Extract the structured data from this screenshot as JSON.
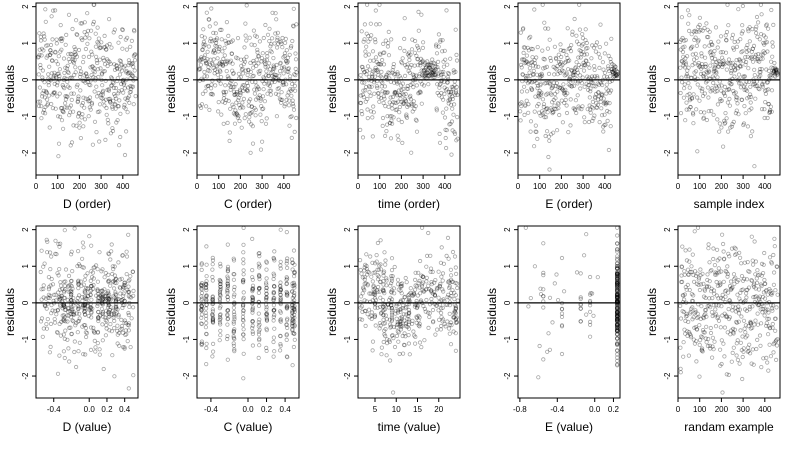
{
  "chart_data": [
    {
      "type": "scatter",
      "xlabel": "D (order)",
      "ylabel": "residuals",
      "xticks": [
        "0",
        "100",
        "200",
        "300",
        "400"
      ],
      "xlim": [
        0,
        470
      ],
      "yticks": [
        "-2",
        "-1",
        "0",
        "1",
        "2"
      ],
      "ylim": [
        -2.6,
        2.1
      ],
      "reference_line": 0,
      "pattern": "order_a",
      "seed": 11
    },
    {
      "type": "scatter",
      "xlabel": "C (order)",
      "ylabel": "residuals",
      "xticks": [
        "0",
        "100",
        "200",
        "300",
        "400"
      ],
      "xlim": [
        0,
        470
      ],
      "yticks": [
        "-2",
        "-1",
        "0",
        "1",
        "2"
      ],
      "ylim": [
        -2.6,
        2.1
      ],
      "reference_line": 0,
      "pattern": "order_b",
      "seed": 23
    },
    {
      "type": "scatter",
      "xlabel": "time (order)",
      "ylabel": "residuals",
      "xticks": [
        "0",
        "100",
        "200",
        "300",
        "400"
      ],
      "xlim": [
        0,
        470
      ],
      "yticks": [
        "-2",
        "-1",
        "0",
        "1",
        "2"
      ],
      "ylim": [
        -2.6,
        2.1
      ],
      "reference_line": 0,
      "pattern": "order_c",
      "seed": 37
    },
    {
      "type": "scatter",
      "xlabel": "E (order)",
      "ylabel": "residuals",
      "xticks": [
        "0",
        "100",
        "200",
        "300",
        "400"
      ],
      "xlim": [
        0,
        470
      ],
      "yticks": [
        "-2",
        "-1",
        "0",
        "1",
        "2"
      ],
      "ylim": [
        -2.6,
        2.1
      ],
      "reference_line": 0,
      "pattern": "order_d",
      "seed": 41
    },
    {
      "type": "scatter",
      "xlabel": "sample index",
      "ylabel": "residuals",
      "xticks": [
        "0",
        "100",
        "200",
        "300",
        "400"
      ],
      "xlim": [
        0,
        470
      ],
      "yticks": [
        "-2",
        "-1",
        "0",
        "1",
        "2"
      ],
      "ylim": [
        -2.6,
        2.1
      ],
      "reference_line": 0,
      "pattern": "order_e",
      "seed": 53
    },
    {
      "type": "scatter",
      "xlabel": "D (value)",
      "ylabel": "residuals",
      "xticks": [
        "-0.4",
        "0.0",
        "0.2",
        "0.4"
      ],
      "xlim": [
        -0.6,
        0.55
      ],
      "yticks": [
        "-2",
        "-1",
        "0",
        "1",
        "2"
      ],
      "ylim": [
        -2.6,
        2.1
      ],
      "reference_line": 0,
      "pattern": "value_d",
      "seed": 61
    },
    {
      "type": "scatter",
      "xlabel": "C (value)",
      "ylabel": "residuals",
      "xticks": [
        "-0.4",
        "0.0",
        "0.2",
        "0.4"
      ],
      "xlim": [
        -0.55,
        0.55
      ],
      "yticks": [
        "-2",
        "-1",
        "0",
        "1",
        "2"
      ],
      "ylim": [
        -2.6,
        2.1
      ],
      "reference_line": 0,
      "pattern": "value_c",
      "seed": 71
    },
    {
      "type": "scatter",
      "xlabel": "time (value)",
      "ylabel": "residuals",
      "xticks": [
        "5",
        "10",
        "15",
        "20"
      ],
      "xlim": [
        1,
        25
      ],
      "yticks": [
        "-2",
        "-1",
        "0",
        "1",
        "2"
      ],
      "ylim": [
        -2.6,
        2.1
      ],
      "reference_line": 0,
      "pattern": "value_t",
      "seed": 83
    },
    {
      "type": "scatter",
      "xlabel": "E (value)",
      "ylabel": "residuals",
      "xticks": [
        "-0.8",
        "-0.4",
        "0.0",
        "0.2"
      ],
      "xlim": [
        -0.82,
        0.27
      ],
      "yticks": [
        "-2",
        "-1",
        "0",
        "1",
        "2"
      ],
      "ylim": [
        -2.6,
        2.1
      ],
      "reference_line": 0,
      "pattern": "value_e",
      "seed": 97
    },
    {
      "type": "scatter",
      "xlabel": "randam example",
      "ylabel": "residuals",
      "xticks": [
        "0",
        "100",
        "200",
        "300",
        "400"
      ],
      "xlim": [
        0,
        470
      ],
      "yticks": [
        "-2",
        "-1",
        "0",
        "1",
        "2"
      ],
      "ylim": [
        -2.6,
        2.1
      ],
      "reference_line": 0,
      "pattern": "random",
      "seed": 101
    }
  ]
}
